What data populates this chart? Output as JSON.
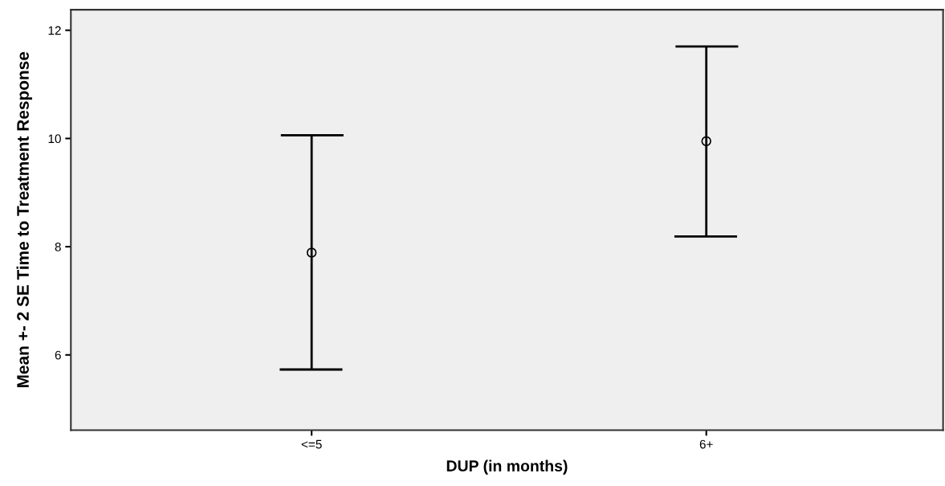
{
  "chart_data": {
    "type": "scatter",
    "xlabel": "DUP (in months)",
    "ylabel": "Mean +- 2 SE Time to Treatment Response",
    "categories": [
      "<=5",
      "6+"
    ],
    "values": [
      7.89,
      9.95
    ],
    "errors": [
      [
        5.73,
        10.06
      ],
      [
        8.19,
        11.7
      ]
    ],
    "color": "#000000",
    "marker": "circle",
    "ylim": [
      4.61,
      12.38
    ],
    "yticks": [
      6,
      8,
      10,
      12
    ],
    "grid": false,
    "legend": false
  }
}
